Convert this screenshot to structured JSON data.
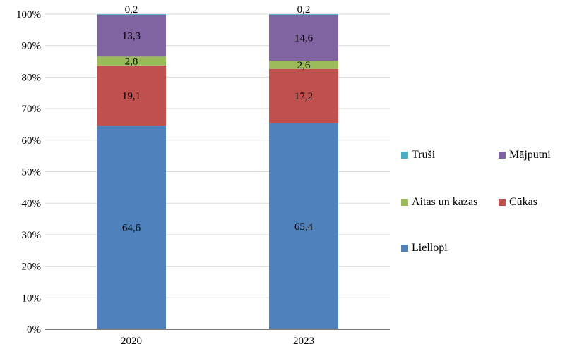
{
  "chart_data": {
    "type": "bar",
    "stacked": true,
    "title": "",
    "xlabel": "",
    "ylabel": "",
    "ylim": [
      0,
      100
    ],
    "y_ticks": [
      "0%",
      "10%",
      "20%",
      "30%",
      "40%",
      "50%",
      "60%",
      "70%",
      "80%",
      "90%",
      "100%"
    ],
    "grid": true,
    "categories": [
      "2020",
      "2023"
    ],
    "series": [
      {
        "name": "Liellopi",
        "color": "#4f81bd",
        "values": [
          64.6,
          65.4
        ],
        "labels": [
          "64,6",
          "65,4"
        ]
      },
      {
        "name": "Cūkas",
        "color": "#c0504d",
        "values": [
          19.1,
          17.2
        ],
        "labels": [
          "19,1",
          "17,2"
        ]
      },
      {
        "name": "Aitas un kazas",
        "color": "#9bbb59",
        "values": [
          2.8,
          2.6
        ],
        "labels": [
          "2,8",
          "2,6"
        ]
      },
      {
        "name": "Mājputni",
        "color": "#8064a2",
        "values": [
          13.3,
          14.6
        ],
        "labels": [
          "13,3",
          "14,6"
        ]
      },
      {
        "name": "Truši",
        "color": "#4bacc6",
        "values": [
          0.2,
          0.2
        ],
        "labels": [
          "0,2",
          "0,2"
        ]
      }
    ],
    "legend": {
      "placement": "right",
      "order": [
        "Truši",
        "Mājputni",
        "Aitas un kazas",
        "Cūkas",
        "Liellopi"
      ]
    }
  }
}
